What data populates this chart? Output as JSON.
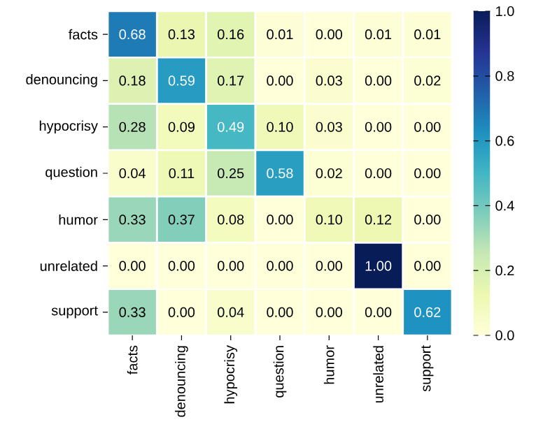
{
  "chart_data": {
    "type": "heatmap",
    "categories": [
      "facts",
      "denouncing",
      "hypocrisy",
      "question",
      "humor",
      "unrelated",
      "support"
    ],
    "y_categories": [
      "facts",
      "denouncing",
      "hypocrisy",
      "question",
      "humor",
      "unrelated",
      "support"
    ],
    "cells": [
      [
        0.68,
        0.13,
        0.16,
        0.01,
        0.0,
        0.01,
        0.01
      ],
      [
        0.18,
        0.59,
        0.17,
        0.0,
        0.03,
        0.0,
        0.02
      ],
      [
        0.28,
        0.09,
        0.49,
        0.1,
        0.03,
        0.0,
        0.0
      ],
      [
        0.04,
        0.11,
        0.25,
        0.58,
        0.02,
        0.0,
        0.0
      ],
      [
        0.33,
        0.37,
        0.08,
        0.0,
        0.1,
        0.12,
        0.0
      ],
      [
        0.0,
        0.0,
        0.0,
        0.0,
        0.0,
        1.0,
        0.0
      ],
      [
        0.33,
        0.0,
        0.04,
        0.0,
        0.0,
        0.0,
        0.62
      ]
    ],
    "cell_labels": [
      [
        "0.68",
        "0.13",
        "0.16",
        "0.01",
        "0.00",
        "0.01",
        "0.01"
      ],
      [
        "0.18",
        "0.59",
        "0.17",
        "0.00",
        "0.03",
        "0.00",
        "0.02"
      ],
      [
        "0.28",
        "0.09",
        "0.49",
        "0.10",
        "0.03",
        "0.00",
        "0.00"
      ],
      [
        "0.04",
        "0.11",
        "0.25",
        "0.58",
        "0.02",
        "0.00",
        "0.00"
      ],
      [
        "0.33",
        "0.37",
        "0.08",
        "0.00",
        "0.10",
        "0.12",
        "0.00"
      ],
      [
        "0.00",
        "0.00",
        "0.00",
        "0.00",
        "0.00",
        "1.00",
        "0.00"
      ],
      [
        "0.33",
        "0.00",
        "0.04",
        "0.00",
        "0.00",
        "0.00",
        "0.62"
      ]
    ],
    "clim": [
      0,
      1
    ],
    "cticks": [
      {
        "value": 0,
        "label": "0.0"
      },
      {
        "value": 0.2,
        "label": "0.2"
      },
      {
        "value": 0.4,
        "label": "0.4"
      },
      {
        "value": 0.6,
        "label": "0.6"
      },
      {
        "value": 0.8,
        "label": "0.8"
      },
      {
        "value": 1,
        "label": "1.0"
      }
    ]
  }
}
